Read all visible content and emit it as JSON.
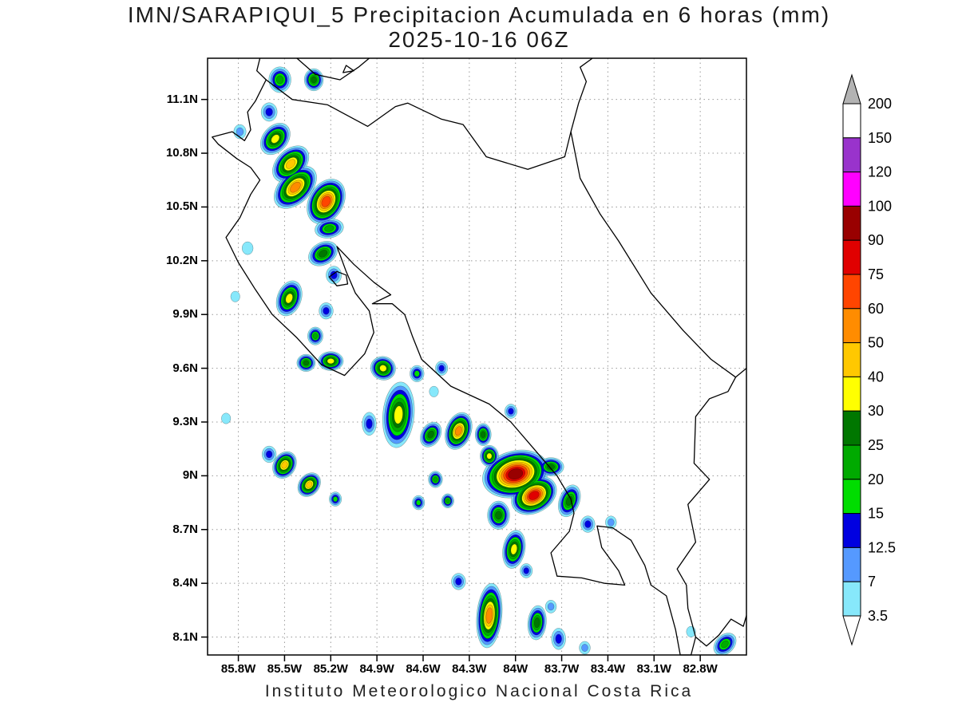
{
  "title": {
    "line1": "IMN/SARAPIQUI_5 Precipitacion Acumulada en 6 horas (mm)",
    "line2": "2025-10-16 06Z"
  },
  "footer": "Instituto Meteorologico Nacional Costa Rica",
  "chart_data": {
    "type": "heatmap",
    "title": "IMN/SARAPIQUI_5 Precipitacion Acumulada en 6 horas (mm)",
    "valid_time": "2025-10-16 06Z",
    "units": "mm",
    "attribution": "Instituto Meteorologico Nacional Costa Rica",
    "projection": {
      "lon_west": 86.0,
      "lon_east": 82.5,
      "lat_north": 11.33,
      "lat_south": 8.0
    },
    "grid": true,
    "x_ticks": [
      {
        "label": "85.8W",
        "lon": 85.8
      },
      {
        "label": "85.5W",
        "lon": 85.5
      },
      {
        "label": "85.2W",
        "lon": 85.2
      },
      {
        "label": "84.9W",
        "lon": 84.9
      },
      {
        "label": "84.6W",
        "lon": 84.6
      },
      {
        "label": "84.3W",
        "lon": 84.3
      },
      {
        "label": "84W",
        "lon": 84.0
      },
      {
        "label": "83.7W",
        "lon": 83.7
      },
      {
        "label": "83.4W",
        "lon": 83.4
      },
      {
        "label": "83.1W",
        "lon": 83.1
      },
      {
        "label": "82.8W",
        "lon": 82.8
      }
    ],
    "y_ticks": [
      {
        "label": "11.1N",
        "lat": 11.1
      },
      {
        "label": "10.8N",
        "lat": 10.8
      },
      {
        "label": "10.5N",
        "lat": 10.5
      },
      {
        "label": "10.2N",
        "lat": 10.2
      },
      {
        "label": "9.9N",
        "lat": 9.9
      },
      {
        "label": "9.6N",
        "lat": 9.6
      },
      {
        "label": "9.3N",
        "lat": 9.3
      },
      {
        "label": "9N",
        "lat": 9.0
      },
      {
        "label": "8.7N",
        "lat": 8.7
      },
      {
        "label": "8.4N",
        "lat": 8.4
      },
      {
        "label": "8.1N",
        "lat": 8.1
      }
    ],
    "colorbar": {
      "labels_top_to_bottom": [
        "200",
        "150",
        "120",
        "100",
        "90",
        "75",
        "60",
        "50",
        "40",
        "30",
        "25",
        "20",
        "15",
        "12.5",
        "7",
        "3.5"
      ],
      "band_colors_top_to_bottom": [
        "#ffffff",
        "#9933cc",
        "#ff00ff",
        "#990000",
        "#e00000",
        "#ff4500",
        "#ff8c00",
        "#ffc800",
        "#ffff00",
        "#007700",
        "#00aa00",
        "#00dd00",
        "#0000e0",
        "#5599ff",
        "#87e8fb"
      ],
      "cap_top_color": "#b3b3b3",
      "cap_bottom_color": "#ffffff"
    },
    "levels_mm_ascending": [
      3.5,
      7,
      12.5,
      15,
      20,
      25,
      30,
      40,
      50,
      60,
      75,
      90
    ],
    "level_colors_ascending": [
      "#87e8fb",
      "#5599ff",
      "#0000e0",
      "#00dd00",
      "#00aa00",
      "#007700",
      "#ffff00",
      "#ffc800",
      "#ff8c00",
      "#ff4500",
      "#e00000",
      "#990000"
    ],
    "cell_fields": [
      "lon_w",
      "lat_n",
      "max_mm",
      "radius_deg",
      "elongation",
      "rotation_deg"
    ],
    "cells": [
      [
        85.53,
        11.21,
        20,
        0.072,
        1,
        0
      ],
      [
        85.31,
        11.21,
        25,
        0.062,
        1,
        0
      ],
      [
        85.6,
        11.03,
        12.5,
        0.052,
        1,
        0
      ],
      [
        85.56,
        10.88,
        30,
        0.082,
        1.2,
        40
      ],
      [
        85.46,
        10.74,
        40,
        0.092,
        1.3,
        45
      ],
      [
        85.43,
        10.61,
        50,
        0.102,
        1.4,
        45
      ],
      [
        85.23,
        10.53,
        60,
        0.112,
        1.2,
        30
      ],
      [
        85.79,
        10.92,
        7,
        0.04,
        1,
        0
      ],
      [
        85.21,
        10.38,
        20,
        0.062,
        1.3,
        80
      ],
      [
        85.25,
        10.24,
        25,
        0.072,
        1.2,
        60
      ],
      [
        85.18,
        10.12,
        12.5,
        0.05,
        1,
        0
      ],
      [
        85.74,
        10.27,
        3.5,
        0.036,
        1,
        0
      ],
      [
        85.47,
        9.99,
        30,
        0.078,
        1.3,
        20
      ],
      [
        85.23,
        9.92,
        12.5,
        0.046,
        1,
        0
      ],
      [
        85.3,
        9.78,
        20,
        0.05,
        1,
        0
      ],
      [
        85.82,
        10.0,
        3.5,
        0.03,
        1,
        0
      ],
      [
        85.2,
        9.64,
        30,
        0.082,
        0.65,
        0
      ],
      [
        85.36,
        9.63,
        25,
        0.06,
        0.8,
        0
      ],
      [
        84.86,
        9.6,
        30,
        0.082,
        0.8,
        20
      ],
      [
        84.64,
        9.57,
        15,
        0.046,
        1,
        0
      ],
      [
        84.48,
        9.6,
        12.5,
        0.04,
        1,
        0
      ],
      [
        84.76,
        9.34,
        30,
        0.102,
        1.8,
        5
      ],
      [
        84.95,
        9.29,
        12.5,
        0.046,
        1.4,
        0
      ],
      [
        84.55,
        9.23,
        25,
        0.062,
        1.2,
        30
      ],
      [
        84.37,
        9.25,
        50,
        0.082,
        1.3,
        20
      ],
      [
        84.21,
        9.23,
        25,
        0.052,
        1.2,
        0
      ],
      [
        84.03,
        9.36,
        12.5,
        0.04,
        1,
        0
      ],
      [
        85.88,
        9.32,
        3.5,
        0.03,
        1,
        0
      ],
      [
        85.6,
        9.12,
        12.5,
        0.046,
        1,
        0
      ],
      [
        85.5,
        9.06,
        40,
        0.072,
        1.1,
        30
      ],
      [
        85.34,
        8.95,
        40,
        0.066,
        1.1,
        40
      ],
      [
        85.17,
        8.87,
        15,
        0.04,
        1,
        0
      ],
      [
        84.0,
        9.01,
        90,
        0.15,
        1.25,
        75
      ],
      [
        83.88,
        8.89,
        75,
        0.112,
        1.2,
        60
      ],
      [
        84.11,
        8.78,
        25,
        0.072,
        1.1,
        0
      ],
      [
        83.77,
        9.05,
        25,
        0.06,
        1.2,
        90
      ],
      [
        84.17,
        9.11,
        30,
        0.06,
        1,
        0
      ],
      [
        84.52,
        8.98,
        20,
        0.046,
        1,
        0
      ],
      [
        84.63,
        8.85,
        15,
        0.04,
        1,
        0
      ],
      [
        84.44,
        8.86,
        20,
        0.04,
        1,
        0
      ],
      [
        83.65,
        8.86,
        25,
        0.066,
        1.4,
        20
      ],
      [
        83.53,
        8.73,
        12.5,
        0.046,
        1,
        0
      ],
      [
        83.38,
        8.74,
        7,
        0.036,
        1,
        0
      ],
      [
        84.01,
        8.59,
        30,
        0.072,
        1.5,
        10
      ],
      [
        83.93,
        8.47,
        12.5,
        0.04,
        1,
        0
      ],
      [
        84.37,
        8.41,
        12.5,
        0.046,
        1,
        0
      ],
      [
        84.17,
        8.22,
        50,
        0.082,
        2.2,
        5
      ],
      [
        83.86,
        8.18,
        25,
        0.06,
        1.6,
        5
      ],
      [
        83.72,
        8.09,
        12.5,
        0.046,
        1.3,
        0
      ],
      [
        83.55,
        8.04,
        7,
        0.036,
        1,
        0
      ],
      [
        82.64,
        8.06,
        20,
        0.06,
        1.2,
        45
      ],
      [
        82.86,
        8.13,
        3.5,
        0.03,
        1,
        0
      ],
      [
        83.77,
        8.27,
        7,
        0.036,
        1,
        0
      ],
      [
        84.53,
        9.47,
        3.5,
        0.03,
        1,
        0
      ]
    ]
  }
}
